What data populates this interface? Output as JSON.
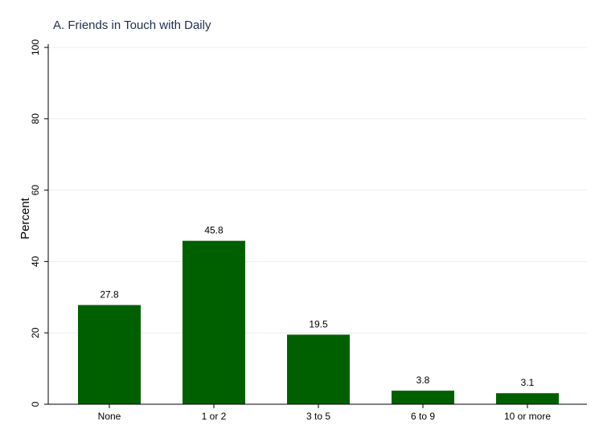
{
  "chart_data": {
    "type": "bar",
    "title": "A. Friends in Touch with Daily",
    "xlabel": "",
    "ylabel": "Percent",
    "categories": [
      "None",
      "1 or 2",
      "3 to 5",
      "6 to 9",
      "10 or more"
    ],
    "values": [
      27.8,
      45.8,
      19.5,
      3.8,
      3.1
    ],
    "data_labels": [
      "27.8",
      "45.8",
      "19.5",
      "3.8",
      "3.1"
    ],
    "ylim": [
      0,
      100
    ],
    "yticks": [
      0,
      20,
      40,
      60,
      80,
      100
    ],
    "grid": true,
    "bar_color": "#006000",
    "grid_color": "#e9edf1",
    "title_color": "#1f2d4d"
  }
}
